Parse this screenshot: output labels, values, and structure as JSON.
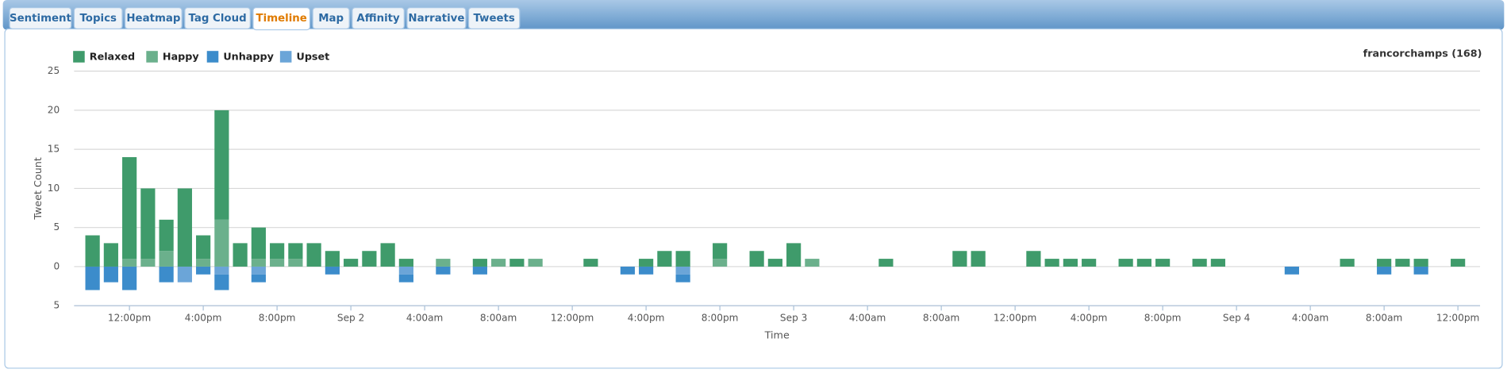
{
  "tabs": [
    "Sentiment",
    "Topics",
    "Heatmap",
    "Tag Cloud",
    "Timeline",
    "Map",
    "Affinity",
    "Narrative",
    "Tweets"
  ],
  "active_tab": 4,
  "chart_data": {
    "type": "bar",
    "stacked": true,
    "subtitle": "francorchamps (168)",
    "y_label": "Tweet Count",
    "x_label": "Time",
    "legend": "top-left",
    "grid": true,
    "x": [
      10,
      11,
      12,
      13,
      14,
      15,
      16,
      17,
      18,
      19,
      20,
      21,
      22,
      23,
      24,
      25,
      26,
      27,
      29,
      31,
      32,
      33,
      34,
      37,
      39,
      40,
      41,
      42,
      44,
      46,
      47,
      48,
      49,
      53,
      57,
      58,
      61,
      62,
      63,
      64,
      66,
      67,
      68,
      70,
      71,
      75,
      78,
      80,
      81,
      82,
      84
    ],
    "series": [
      {
        "name": "Relaxed",
        "color": "#3f9b6b",
        "values": [
          4,
          3,
          13,
          9,
          4,
          10,
          3,
          14,
          3,
          4,
          2,
          2,
          3,
          2,
          1,
          2,
          3,
          1,
          0,
          1,
          0,
          1,
          0,
          1,
          0,
          1,
          2,
          2,
          2,
          2,
          1,
          3,
          0,
          1,
          2,
          2,
          2,
          1,
          1,
          1,
          1,
          1,
          1,
          1,
          1,
          0,
          1,
          1,
          1,
          1,
          1
        ]
      },
      {
        "name": "Happy",
        "color": "#6bb08c",
        "values": [
          0,
          0,
          1,
          1,
          2,
          0,
          1,
          6,
          0,
          1,
          1,
          1,
          0,
          0,
          0,
          0,
          0,
          0,
          1,
          0,
          1,
          0,
          1,
          0,
          0,
          0,
          0,
          0,
          1,
          0,
          0,
          0,
          1,
          0,
          0,
          0,
          0,
          0,
          0,
          0,
          0,
          0,
          0,
          0,
          0,
          0,
          0,
          0,
          0,
          0,
          0
        ]
      },
      {
        "name": "Unhappy",
        "color": "#3c8ccb",
        "values": [
          -3,
          -2,
          -3,
          0,
          -2,
          0,
          -1,
          -2,
          0,
          -1,
          0,
          0,
          0,
          -1,
          0,
          0,
          0,
          -1,
          -1,
          -1,
          0,
          0,
          0,
          0,
          -1,
          -1,
          0,
          -1,
          0,
          0,
          0,
          0,
          0,
          0,
          0,
          0,
          0,
          0,
          0,
          0,
          0,
          0,
          0,
          0,
          0,
          -1,
          0,
          -1,
          0,
          -1,
          0
        ]
      },
      {
        "name": "Upset",
        "color": "#6ba5d8",
        "values": [
          0,
          0,
          0,
          0,
          0,
          -2,
          0,
          -1,
          0,
          -1,
          0,
          0,
          0,
          0,
          0,
          0,
          0,
          -1,
          0,
          0,
          0,
          0,
          0,
          0,
          0,
          0,
          0,
          -1,
          0,
          0,
          0,
          0,
          0,
          0,
          0,
          0,
          0,
          0,
          0,
          0,
          0,
          0,
          0,
          0,
          0,
          0,
          0,
          0,
          0,
          0,
          0
        ]
      }
    ],
    "ylim": [
      -5,
      25
    ],
    "yticks": [
      25,
      20,
      15,
      10,
      5,
      0,
      {
        "value": -5,
        "label": "5"
      }
    ],
    "xlim": [
      9,
      85.2
    ],
    "xticks": [
      {
        "value": 12,
        "label": "12:00pm"
      },
      {
        "value": 16,
        "label": "4:00pm"
      },
      {
        "value": 20,
        "label": "8:00pm"
      },
      {
        "value": 24,
        "label": "Sep 2"
      },
      {
        "value": 28,
        "label": "4:00am"
      },
      {
        "value": 32,
        "label": "8:00am"
      },
      {
        "value": 36,
        "label": "12:00pm"
      },
      {
        "value": 40,
        "label": "4:00pm"
      },
      {
        "value": 44,
        "label": "8:00pm"
      },
      {
        "value": 48,
        "label": "Sep 3"
      },
      {
        "value": 52,
        "label": "4:00am"
      },
      {
        "value": 56,
        "label": "8:00am"
      },
      {
        "value": 60,
        "label": "12:00pm"
      },
      {
        "value": 64,
        "label": "4:00pm"
      },
      {
        "value": 68,
        "label": "8:00pm"
      },
      {
        "value": 72,
        "label": "Sep 4"
      },
      {
        "value": 76,
        "label": "4:00am"
      },
      {
        "value": 80,
        "label": "8:00am"
      },
      {
        "value": 84,
        "label": "12:00pm"
      }
    ]
  }
}
